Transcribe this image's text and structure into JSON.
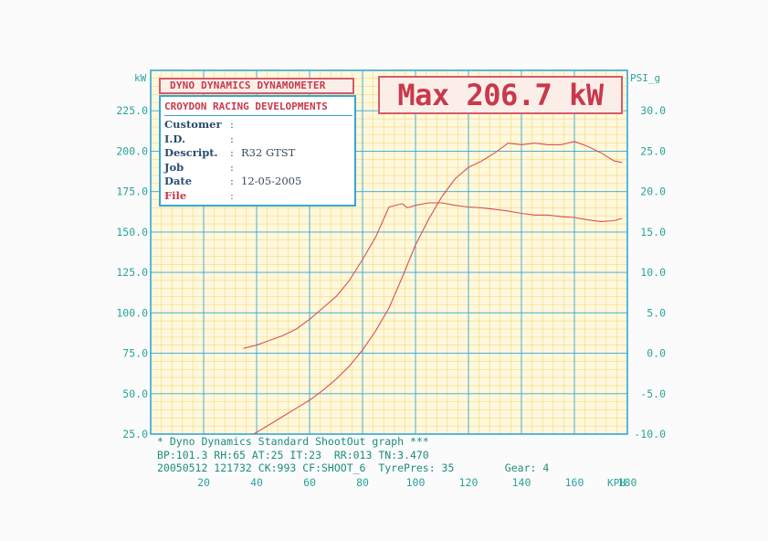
{
  "header": {
    "dyno_title": "DYNO DYNAMICS DYNAMOMETER",
    "max_text": "Max 206.7 kW"
  },
  "info": {
    "company": "CROYDON RACING DEVELOPMENTS",
    "rows": [
      {
        "label": "Customer",
        "value": ""
      },
      {
        "label": "I.D.",
        "value": ""
      },
      {
        "label": "Descript.",
        "value": "R32 GTST"
      },
      {
        "label": "Job",
        "value": ""
      },
      {
        "label": "Date",
        "value": "12-05-2005"
      },
      {
        "label": "File",
        "value": ""
      }
    ]
  },
  "footer": {
    "line1": "* Dyno Dynamics Standard ShootOut graph ***",
    "line2": "BP:101.3 RH:65 AT:25 IT:23  RR:013 TN:3.470",
    "line3": "20050512 121732 CK:993 CF:SHOOT_6  TyrePres: 35        Gear: 4"
  },
  "colors": {
    "grid_major": "#33a7d8",
    "grid_minor": "#f2d77a",
    "plot_bg": "#fff8dc",
    "curve": "#d85058",
    "axis_text": "#2aa39a"
  },
  "chart_data": {
    "type": "line",
    "xlabel": "KPH",
    "ylabel_left": "kW",
    "ylabel_right": "PSI_g",
    "xlim": [
      0,
      180
    ],
    "ylim_left": [
      25,
      250
    ],
    "ylim_right": [
      -10,
      35
    ],
    "x_ticks": [
      "20",
      "40",
      "60",
      "80",
      "100",
      "120",
      "140",
      "160",
      "180"
    ],
    "y_ticks_left": [
      "25.0",
      "50.0",
      "75.0",
      "100.0",
      "125.0",
      "150.0",
      "175.0",
      "200.0",
      "225.0"
    ],
    "y_ticks_right": [
      "-10.0",
      "-5.0",
      "0.0",
      "5.0",
      "10.0",
      "15.0",
      "20.0",
      "25.0",
      "30.0"
    ],
    "grid": true,
    "series": [
      {
        "axis": "left",
        "unit": "kW",
        "x": [
          35,
          40,
          45,
          50,
          55,
          60,
          65,
          70,
          75,
          80,
          85,
          90,
          95,
          100,
          105,
          110,
          115,
          120,
          125,
          130,
          135,
          140,
          145,
          150,
          155,
          160,
          165,
          170,
          175,
          178
        ],
        "y": [
          22,
          26,
          31,
          36,
          41,
          46,
          52,
          59,
          67,
          77,
          89,
          103,
          122,
          142,
          158,
          172,
          183,
          190,
          194,
          199,
          205,
          204,
          205,
          204,
          204,
          206,
          203,
          199,
          194,
          193
        ]
      },
      {
        "axis": "right",
        "unit": "PSI_g",
        "x": [
          35,
          40,
          45,
          50,
          55,
          60,
          65,
          70,
          75,
          80,
          85,
          90,
          95,
          97,
          100,
          105,
          110,
          115,
          120,
          125,
          130,
          135,
          140,
          145,
          150,
          155,
          160,
          165,
          170,
          175,
          178
        ],
        "y": [
          0.6,
          1.0,
          1.6,
          2.2,
          3.0,
          4.2,
          5.6,
          7.0,
          9.0,
          11.6,
          14.4,
          18.1,
          18.5,
          18.0,
          18.3,
          18.6,
          18.6,
          18.3,
          18.1,
          18.0,
          17.8,
          17.6,
          17.3,
          17.1,
          17.1,
          16.9,
          16.8,
          16.5,
          16.3,
          16.4,
          16.7
        ]
      }
    ]
  }
}
